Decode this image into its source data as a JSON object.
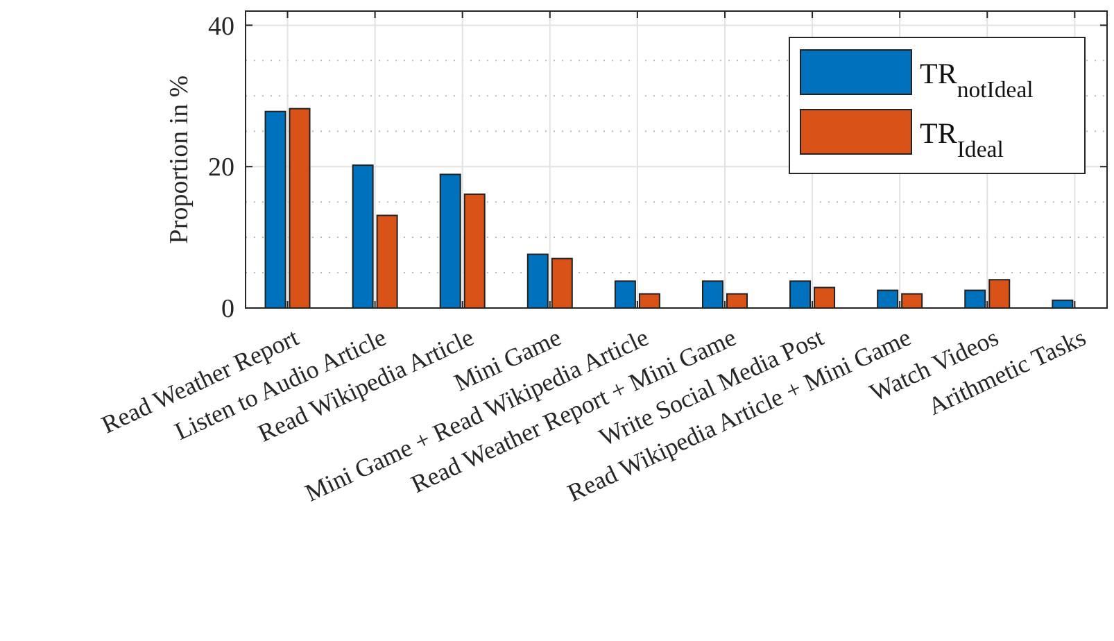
{
  "chart_data": {
    "type": "bar",
    "categories": [
      "Read Weather Report",
      "Listen to Audio Article",
      "Read Wikipedia Article",
      "Mini Game",
      "Mini Game + Read Wikipedia Article",
      "Read Weather Report + Mini Game",
      "Write Social Media Post",
      "Read Wikipedia Article + Mini Game",
      "Watch Videos",
      "Arithmetic Tasks"
    ],
    "series": [
      {
        "name": "TR$_{notIdeal}$",
        "color": "#0072bd",
        "values": [
          27.8,
          20.2,
          18.9,
          7.6,
          3.8,
          3.8,
          3.8,
          2.5,
          2.5,
          1.1
        ]
      },
      {
        "name": "TR$_{Ideal}$",
        "color": "#d95319",
        "values": [
          28.2,
          13.1,
          16.1,
          7.0,
          2.0,
          2.0,
          2.9,
          2.0,
          4.0,
          0
        ]
      }
    ],
    "ylabel": "Proportion in %",
    "ylim": [
      0,
      42
    ],
    "yticks": [
      0,
      20,
      40
    ],
    "grid": true,
    "legend": "top right"
  }
}
